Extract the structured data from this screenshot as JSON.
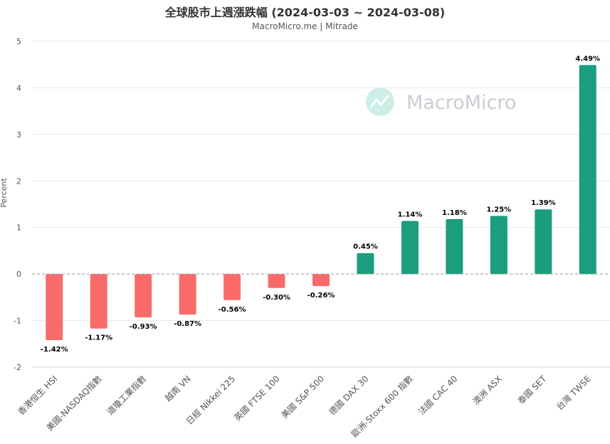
{
  "header": {
    "title": "全球股市上週漲跌幅 (2024-03-03 ~ 2024-03-08)",
    "subtitle": "MacroMicro.me | Mitrade"
  },
  "watermark": {
    "text": "MacroMicro",
    "icon": "macromicro-logo-icon"
  },
  "colors": {
    "positive": "#1a9e7d",
    "negative": "#f96b6b",
    "zero_line": "#999999",
    "grid": "#e6e6e6",
    "watermark_icon": "#cdeee6"
  },
  "chart_data": {
    "type": "bar",
    "title": "全球股市上週漲跌幅 (2024-03-03 ~ 2024-03-08)",
    "subtitle": "MacroMicro.me | Mitrade",
    "xlabel": "",
    "ylabel": "Percent",
    "ylim": [
      -2,
      5
    ],
    "yticks": [
      "5",
      "4",
      "3",
      "2",
      "1",
      "0",
      "-1",
      "-2"
    ],
    "ytick_values": [
      5,
      4,
      3,
      2,
      1,
      0,
      -1,
      -2
    ],
    "grid": true,
    "categories": [
      "香港恒生 HSI",
      "美國-NASDAQ指數",
      "道瓊工業指數",
      "越南 VN",
      "日經 Nikkei 225",
      "英國 FTSE 100",
      "美國 S&P 500",
      "德國 DAX 30",
      "歐洲-Stoxx 600 指數",
      "法國 CAC 40",
      "澳洲 ASX",
      "泰國 SET",
      "台灣 TWSE"
    ],
    "values": [
      -1.42,
      -1.17,
      -0.93,
      -0.87,
      -0.56,
      -0.3,
      -0.26,
      0.45,
      1.14,
      1.18,
      1.25,
      1.39,
      4.49
    ],
    "data_labels": [
      "-1.42%",
      "-1.17%",
      "-0.93%",
      "-0.87%",
      "-0.56%",
      "-0.30%",
      "-0.26%",
      "0.45%",
      "1.14%",
      "1.18%",
      "1.25%",
      "1.39%",
      "4.49%"
    ]
  }
}
